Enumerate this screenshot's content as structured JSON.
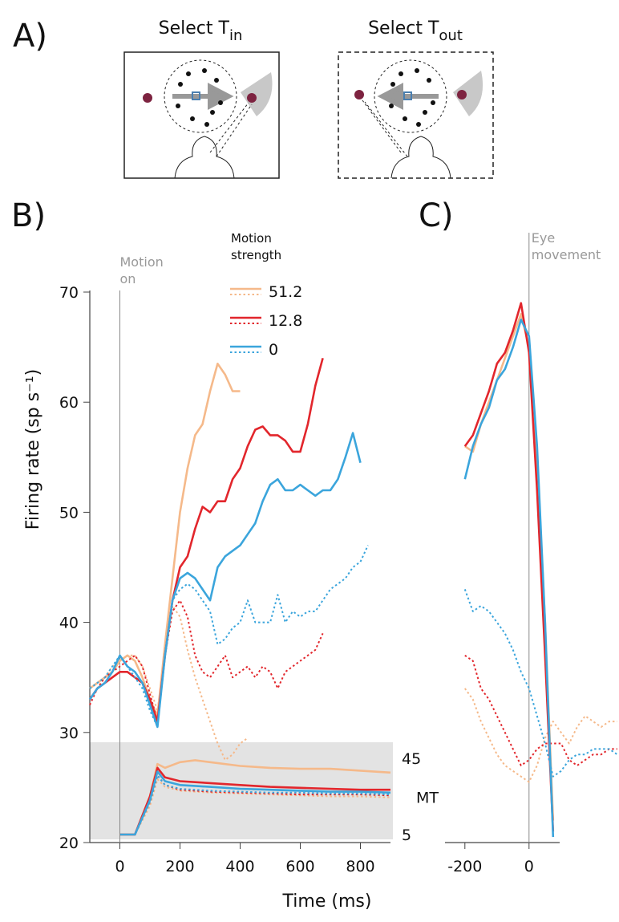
{
  "panel_a": {
    "label": "A)",
    "boxes": [
      {
        "text": "Select T",
        "subscript": "in"
      },
      {
        "text": "Select T",
        "subscript": "out"
      }
    ]
  },
  "chart_data": [
    {
      "type": "line",
      "panel": "B)",
      "x_label": "Time (ms)",
      "y_label": "Firing rate (sp s⁻¹)",
      "annotation": {
        "text": "Motion on",
        "x": 0
      },
      "legend_title": "Motion strength",
      "xlim": [
        -100,
        900
      ],
      "xticks": [
        0,
        200,
        400,
        600,
        800
      ],
      "ylim": [
        20,
        70
      ],
      "yticks": [
        20,
        30,
        40,
        50,
        60,
        70
      ],
      "x": [
        -100,
        -75,
        -50,
        -25,
        0,
        25,
        50,
        75,
        100,
        125,
        150,
        175,
        200,
        225,
        250,
        275,
        300,
        325,
        350,
        375,
        400,
        425,
        450,
        475,
        500,
        525,
        550,
        575,
        600,
        625,
        650,
        675,
        700,
        725,
        750,
        775,
        800,
        825
      ],
      "series": [
        {
          "name": "51.2",
          "color": "#f5b98a",
          "dashed": false,
          "values": [
            34,
            34.5,
            35,
            35.5,
            36.5,
            37,
            36.5,
            35,
            33,
            31.5,
            38,
            44,
            50,
            54,
            57,
            58,
            61,
            63.5,
            62.5,
            61,
            61,
            null,
            null,
            null,
            null,
            null,
            null,
            null,
            null,
            null,
            null,
            null,
            null,
            null,
            null,
            null,
            null,
            null
          ]
        },
        {
          "name": "51.2",
          "color": "#f5b98a",
          "dashed": true,
          "values": [
            33,
            34,
            35,
            36,
            36.5,
            37,
            37,
            36,
            34,
            32,
            37,
            41.5,
            40.5,
            37.5,
            35,
            33,
            31,
            29,
            27.5,
            28,
            29,
            29.5,
            null,
            null,
            null,
            null,
            null,
            null,
            null,
            null,
            null,
            null,
            null,
            null,
            null,
            null,
            null,
            null
          ]
        },
        {
          "name": "12.8",
          "color": "#e2262c",
          "dashed": false,
          "values": [
            33,
            34,
            34.5,
            35,
            35.5,
            35.5,
            35,
            34.5,
            33,
            31,
            37,
            42,
            45,
            46,
            48.5,
            50.5,
            50,
            51,
            51,
            53,
            54,
            56,
            57.5,
            57.8,
            57,
            57,
            56.5,
            55.5,
            55.5,
            58,
            61.5,
            64,
            null,
            null,
            null,
            null,
            null,
            null
          ]
        },
        {
          "name": "12.8",
          "color": "#e2262c",
          "dashed": true,
          "values": [
            32.5,
            34,
            35,
            35.5,
            36,
            36.5,
            37,
            36,
            33.5,
            31,
            37,
            41,
            42,
            40.5,
            37,
            35.5,
            35,
            36,
            37,
            35,
            35.5,
            36,
            35,
            36,
            35.5,
            34,
            35.5,
            36,
            36.5,
            37,
            37.5,
            39,
            null,
            null,
            null,
            null,
            null,
            null
          ]
        },
        {
          "name": "0",
          "color": "#3ba5dc",
          "dashed": false,
          "values": [
            33,
            34,
            34.5,
            35.5,
            37,
            36,
            35.5,
            34.5,
            32.5,
            30.5,
            37,
            42,
            44,
            44.5,
            44,
            43,
            42,
            45,
            46,
            46.5,
            47,
            48,
            49,
            51,
            52.5,
            53,
            52,
            52,
            52.5,
            52,
            51.5,
            52,
            52,
            53,
            55,
            57.2,
            54.5,
            null
          ]
        },
        {
          "name": "0",
          "color": "#3ba5dc",
          "dashed": true,
          "values": [
            34,
            34.5,
            35,
            36,
            37,
            36,
            35,
            34,
            32,
            30.5,
            37,
            42,
            43,
            43.5,
            43,
            42,
            41,
            38,
            38.5,
            39.5,
            40,
            42,
            40,
            40,
            40,
            42.5,
            40,
            41,
            40.5,
            41,
            41,
            42,
            43,
            43.5,
            44,
            45,
            45.5,
            47
          ]
        }
      ],
      "inset": {
        "label": "MT",
        "ylim": [
          5,
          45
        ],
        "yticks": [
          5,
          45
        ],
        "x": [
          0,
          50,
          100,
          125,
          150,
          200,
          250,
          300,
          400,
          500,
          600,
          700,
          800,
          900
        ],
        "series": [
          {
            "color": "#f5b98a",
            "dashed": false,
            "values": [
              5,
              5,
              25,
              42,
              40,
              43,
              44,
              43,
              41,
              40,
              39.5,
              39.5,
              38.5,
              37.5
            ]
          },
          {
            "color": "#f5b98a",
            "dashed": true,
            "values": [
              5,
              5,
              20,
              34,
              30,
              28,
              27.5,
              27,
              26.5,
              26,
              25.5,
              25,
              25,
              24.5
            ]
          },
          {
            "color": "#e2262c",
            "dashed": false,
            "values": [
              5,
              5,
              25,
              40,
              35,
              33,
              32.5,
              32,
              31,
              30,
              29.5,
              29,
              28.5,
              28.5
            ]
          },
          {
            "color": "#e2262c",
            "dashed": true,
            "values": [
              5,
              5,
              22,
              36,
              31,
              28.5,
              28,
              27.5,
              27,
              26.5,
              26,
              26,
              26,
              25.5
            ]
          },
          {
            "color": "#3ba5dc",
            "dashed": false,
            "values": [
              5,
              5,
              23,
              38,
              33,
              31,
              30.5,
              30,
              29,
              28.5,
              28,
              27.5,
              27.5,
              27
            ]
          },
          {
            "color": "#3ba5dc",
            "dashed": true,
            "values": [
              5,
              5,
              22,
              36,
              31,
              29,
              28.5,
              28,
              27.5,
              27,
              27,
              26.5,
              26.5,
              26
            ]
          }
        ]
      }
    },
    {
      "type": "line",
      "panel": "C)",
      "annotation": {
        "text": "Eye movement",
        "x": 0
      },
      "xlim": [
        -262,
        280
      ],
      "xticks": [
        -200,
        0
      ],
      "ylim": [
        20,
        70
      ],
      "x": [
        -200,
        -175,
        -150,
        -125,
        -100,
        -75,
        -50,
        -25,
        0,
        25,
        50,
        75,
        100,
        125,
        150,
        175,
        200,
        225,
        250,
        275
      ],
      "series": [
        {
          "name": "51.2",
          "color": "#f5b98a",
          "dashed": false,
          "values": [
            56,
            55.5,
            58,
            60,
            62,
            64,
            66,
            68,
            65,
            55,
            40,
            22,
            null,
            null,
            null,
            null,
            null,
            null,
            null,
            null
          ]
        },
        {
          "name": "51.2",
          "color": "#f5b98a",
          "dashed": true,
          "values": [
            34,
            33,
            31,
            29.5,
            28,
            27,
            26.5,
            26,
            25.5,
            27,
            29.5,
            31,
            30,
            29,
            30.5,
            31.5,
            31,
            30.5,
            31,
            31
          ]
        },
        {
          "name": "12.8",
          "color": "#e2262c",
          "dashed": false,
          "values": [
            56,
            57,
            59,
            61,
            63.5,
            64.5,
            66.5,
            69,
            64.5,
            52,
            37,
            21,
            null,
            null,
            null,
            null,
            null,
            null,
            null,
            null
          ]
        },
        {
          "name": "12.8",
          "color": "#e2262c",
          "dashed": true,
          "values": [
            37,
            36.5,
            34,
            33,
            31.5,
            30,
            28.5,
            27,
            27.5,
            28.5,
            29,
            29,
            29,
            27.5,
            27,
            27.5,
            28,
            28,
            28.5,
            28.5
          ]
        },
        {
          "name": "0",
          "color": "#3ba5dc",
          "dashed": false,
          "values": [
            53,
            56,
            58,
            59.5,
            62,
            63,
            65,
            67.5,
            66,
            56,
            40,
            20.5,
            null,
            null,
            null,
            null,
            null,
            null,
            null,
            null
          ]
        },
        {
          "name": "0",
          "color": "#3ba5dc",
          "dashed": true,
          "values": [
            43,
            41,
            41.5,
            41,
            40,
            39,
            37.5,
            35.5,
            34,
            31.5,
            29,
            26,
            26.5,
            27.5,
            28,
            28,
            28.5,
            28.5,
            28.5,
            28
          ]
        }
      ]
    }
  ]
}
